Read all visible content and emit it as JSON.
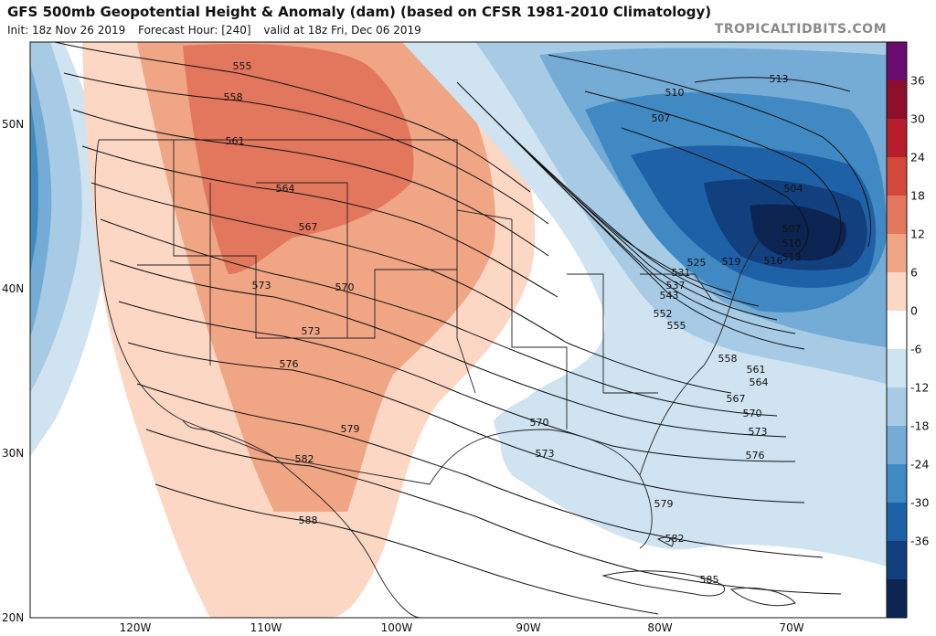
{
  "header": {
    "title": "GFS 500mb Geopotential Height & Anomaly (dam) (based on CFSR 1981-2010 Climatology)",
    "init": "Init: 18z Nov 26 2019",
    "forecast_hour": "Forecast Hour: [240]",
    "valid": "valid at 18z Fri, Dec 06 2019",
    "brand": "TROPICALTIDBITS.COM"
  },
  "colorbar": {
    "labels": [
      "36",
      "30",
      "24",
      "18",
      "12",
      "6",
      "0",
      "-6",
      "-12",
      "-18",
      "-24",
      "-30",
      "-36"
    ],
    "colors": [
      "#6a0b6e",
      "#8e0f2c",
      "#b51e2a",
      "#d34a3c",
      "#e2775d",
      "#f0a585",
      "#fbd7c4",
      "#ffffff",
      "#cfe3f1",
      "#a7cbe5",
      "#74acd6",
      "#4189c2",
      "#1f61a6",
      "#123f7d",
      "#0b2452"
    ]
  },
  "axes": {
    "lat_labels": [
      "50N",
      "40N",
      "30N",
      "20N"
    ],
    "lon_labels": [
      "120W",
      "110W",
      "100W",
      "90W",
      "80W",
      "70W"
    ]
  },
  "contours": [
    {
      "label": "555"
    },
    {
      "label": "558"
    },
    {
      "label": "561"
    },
    {
      "label": "564"
    },
    {
      "label": "567"
    },
    {
      "label": "570"
    },
    {
      "label": "573"
    },
    {
      "label": "576"
    },
    {
      "label": "579"
    },
    {
      "label": "582"
    },
    {
      "label": "585"
    },
    {
      "label": "588"
    }
  ],
  "east_labels": [
    "513",
    "510",
    "507",
    "504",
    "507",
    "510",
    "513",
    "516",
    "519",
    "525",
    "531",
    "537",
    "543",
    "552",
    "555",
    "558",
    "561",
    "564",
    "567",
    "570",
    "573",
    "576",
    "579",
    "582",
    "585",
    "573",
    "570"
  ]
}
